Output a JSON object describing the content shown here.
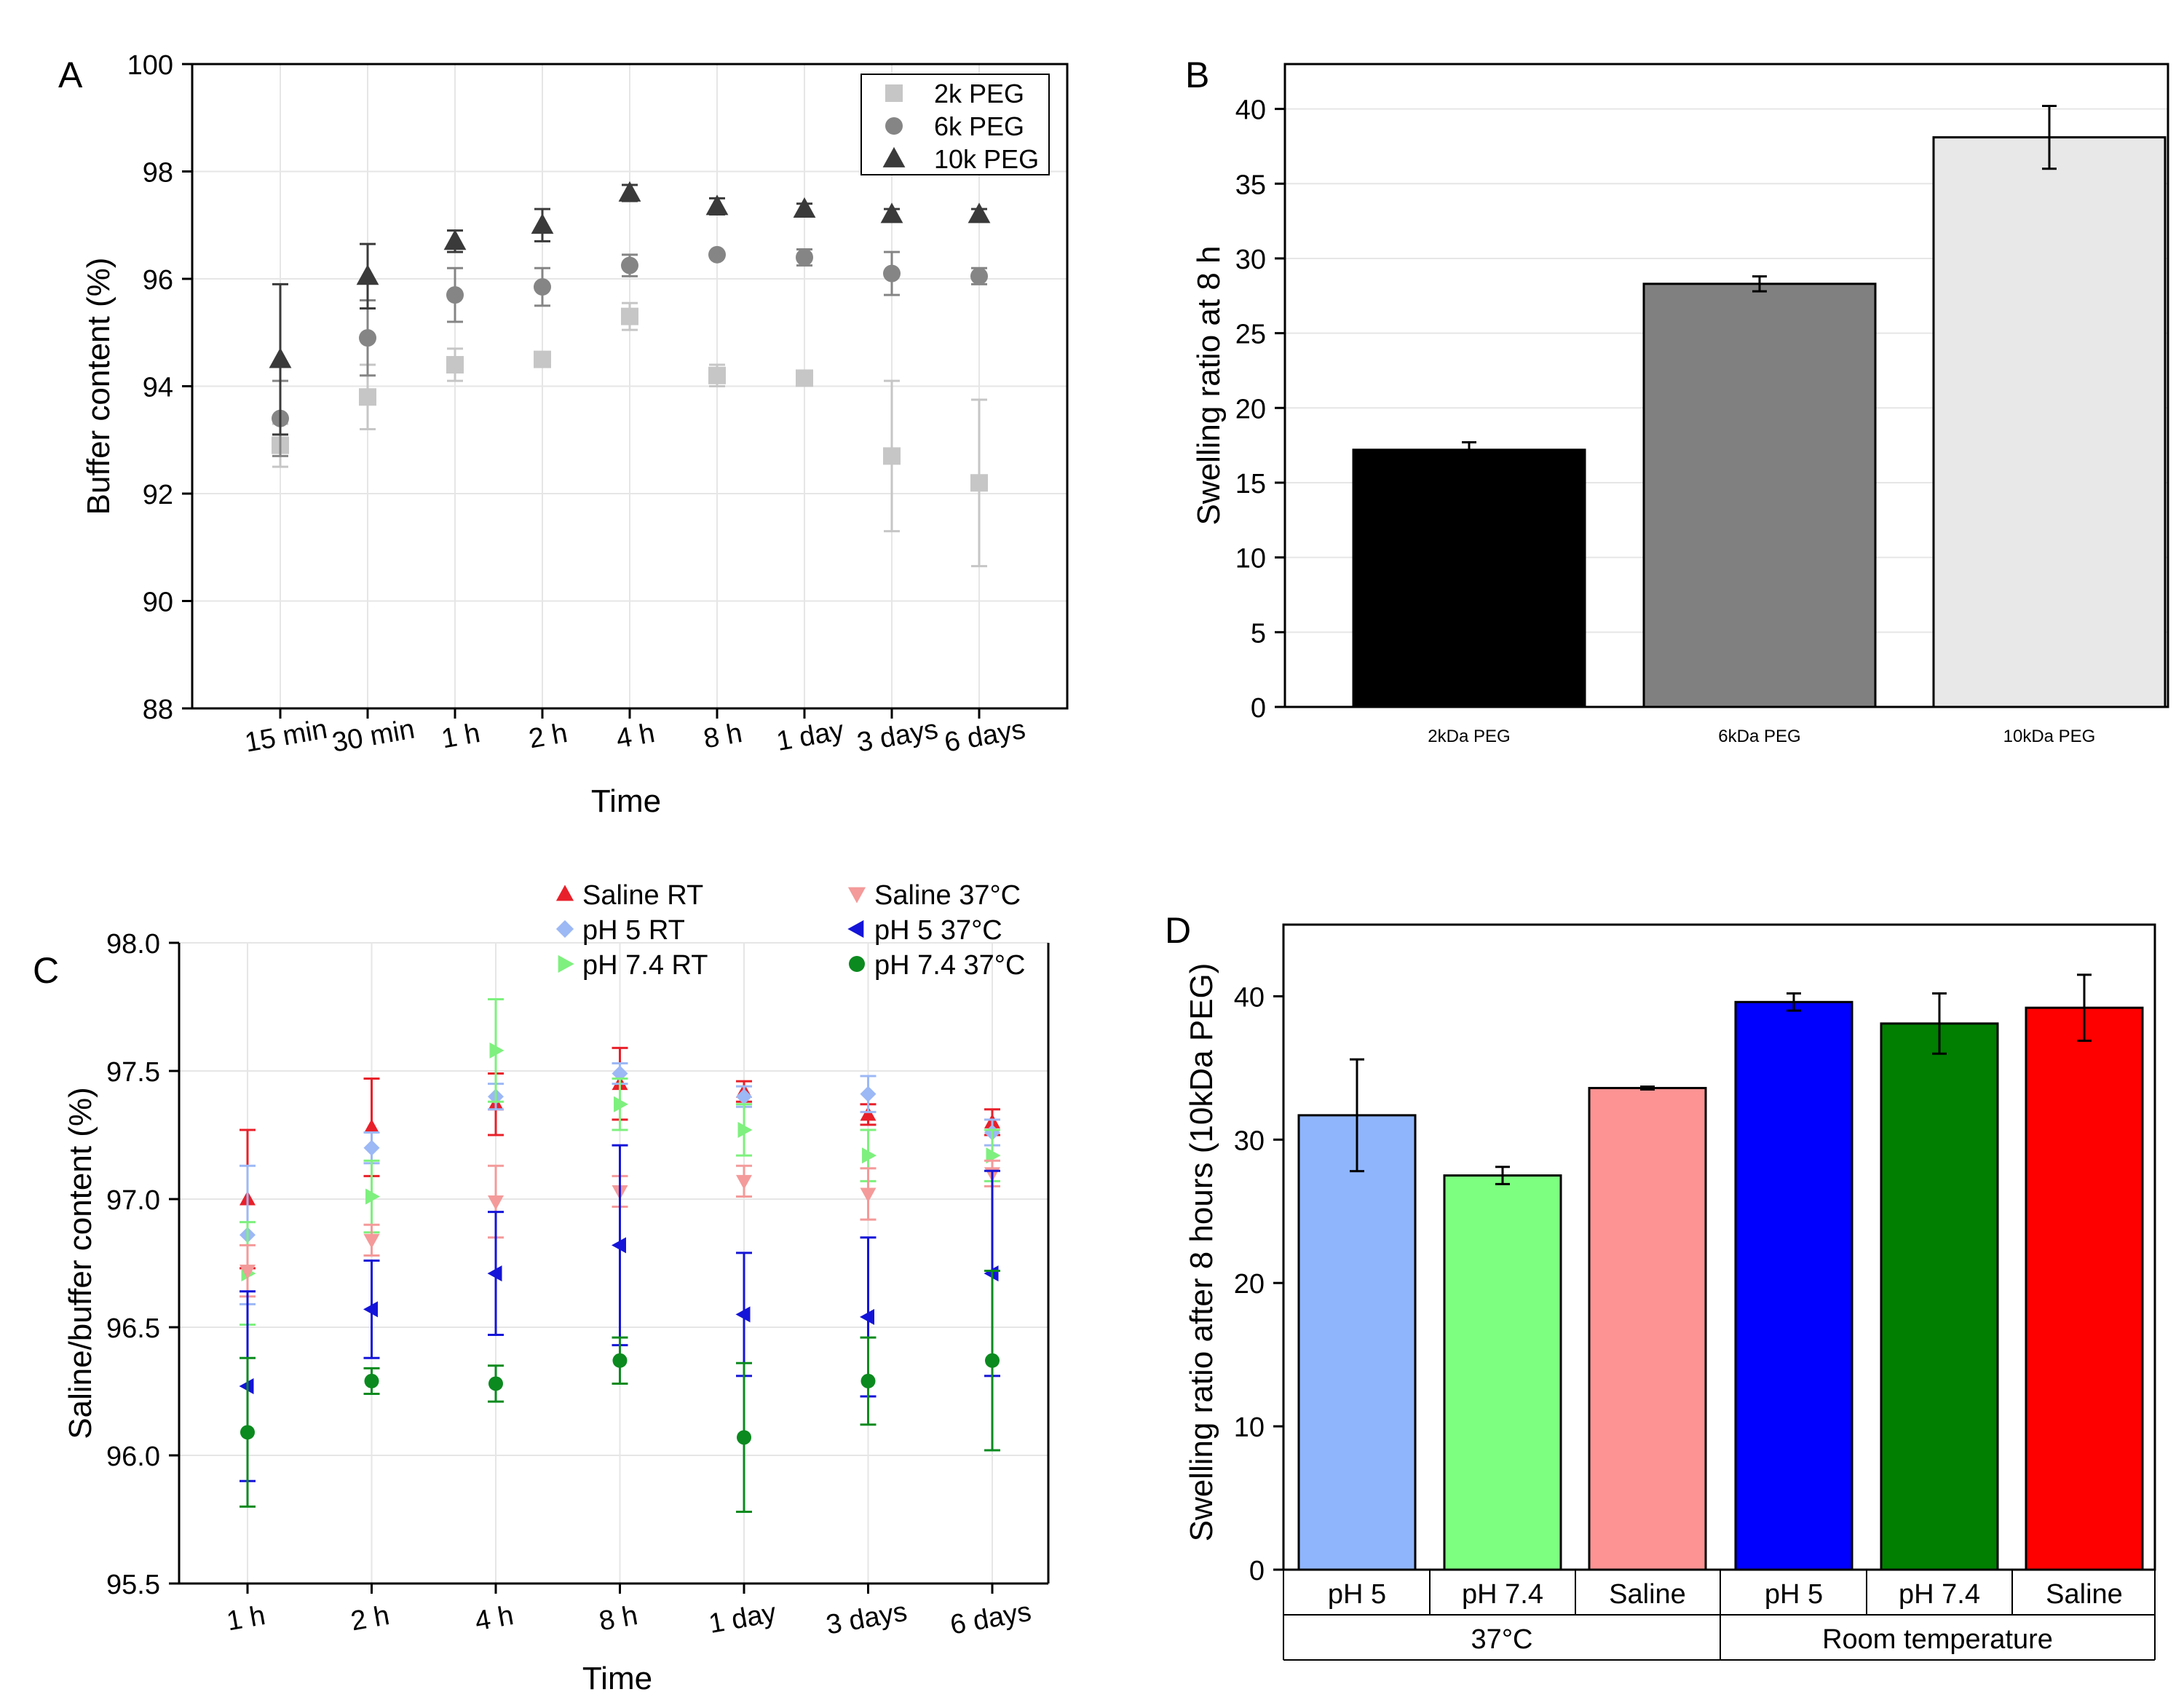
{
  "chart_data": [
    {
      "panel": "A",
      "type": "scatter",
      "xlabel": "Time",
      "ylabel": "Buffer content (%)",
      "ylim": [
        88,
        100
      ],
      "yticks": [
        88,
        90,
        92,
        94,
        96,
        98,
        100
      ],
      "categories": [
        "15 min",
        "30 min",
        "1 h",
        "2 h",
        "4 h",
        "8 h",
        "1 day",
        "3 days",
        "6 days"
      ],
      "legend_position": "top-right",
      "series": [
        {
          "name": "2k PEG",
          "marker": "square",
          "color": "#c6c6c6",
          "values": [
            92.9,
            93.8,
            94.4,
            94.5,
            95.3,
            94.2,
            94.15,
            92.7,
            92.2
          ],
          "errors": [
            0.4,
            0.6,
            0.3,
            0.05,
            0.25,
            0.2,
            0.05,
            1.4,
            1.55
          ]
        },
        {
          "name": "6k PEG",
          "marker": "circle",
          "color": "#858585",
          "values": [
            93.4,
            94.9,
            95.7,
            95.85,
            96.25,
            96.45,
            96.4,
            96.1,
            96.05
          ],
          "errors": [
            0.7,
            0.7,
            0.5,
            0.35,
            0.2,
            0.05,
            0.15,
            0.4,
            0.15
          ]
        },
        {
          "name": "10k PEG",
          "marker": "triangle",
          "color": "#3a3a3a",
          "values": [
            94.5,
            96.05,
            96.7,
            97.0,
            97.6,
            97.35,
            97.3,
            97.2,
            97.2
          ],
          "errors": [
            1.4,
            0.6,
            0.2,
            0.3,
            0.15,
            0.15,
            0.1,
            0.1,
            0.1
          ]
        }
      ]
    },
    {
      "panel": "B",
      "type": "bar",
      "xlabel": "",
      "ylabel": "Swelling ratio at 8 h",
      "ylim": [
        0,
        43
      ],
      "yticks": [
        0,
        5,
        10,
        15,
        20,
        25,
        30,
        35,
        40
      ],
      "categories": [
        "2kDa PEG",
        "6kDa PEG",
        "10kDa PEG"
      ],
      "values": [
        17.2,
        28.3,
        38.1
      ],
      "errors": [
        0.5,
        0.5,
        2.1
      ],
      "colors": [
        "#000000",
        "#808080",
        "#e8e8e8"
      ]
    },
    {
      "panel": "C",
      "type": "scatter",
      "xlabel": "Time",
      "ylabel": "Saline/buffer content (%)",
      "ylim": [
        95.5,
        98.0
      ],
      "yticks": [
        "95.5",
        "96.0",
        "96.5",
        "97.0",
        "97.5",
        "98.0"
      ],
      "categories": [
        "1 h",
        "2 h",
        "4 h",
        "8 h",
        "1 day",
        "3 days",
        "6 days"
      ],
      "legend_position": "top",
      "series": [
        {
          "name": "Saline RT",
          "marker": "triangle-up",
          "color": "#e8202a",
          "values": [
            97.0,
            97.28,
            97.37,
            97.45,
            97.42,
            97.33,
            97.3
          ],
          "errors": [
            0.27,
            0.19,
            0.12,
            0.14,
            0.04,
            0.04,
            0.05
          ]
        },
        {
          "name": "pH 5 RT",
          "marker": "diamond",
          "color": "#9cb8f5",
          "values": [
            96.86,
            97.2,
            97.4,
            97.49,
            97.4,
            97.41,
            97.26
          ],
          "errors": [
            0.27,
            0.06,
            0.05,
            0.04,
            0.04,
            0.07,
            0.05
          ]
        },
        {
          "name": "pH 7.4 RT",
          "marker": "triangle-right",
          "color": "#7ef07e",
          "values": [
            96.71,
            97.01,
            97.58,
            97.37,
            97.27,
            97.17,
            97.17
          ],
          "errors": [
            0.2,
            0.14,
            0.2,
            0.1,
            0.1,
            0.1,
            0.1
          ]
        },
        {
          "name": "Saline 37°C",
          "marker": "triangle-down",
          "color": "#f49a9a",
          "values": [
            96.72,
            96.84,
            96.99,
            97.03,
            97.07,
            97.02,
            97.1
          ],
          "errors": [
            0.1,
            0.06,
            0.14,
            0.06,
            0.06,
            0.1,
            0.05
          ]
        },
        {
          "name": "pH 5 37°C",
          "marker": "triangle-left",
          "color": "#1414d8",
          "values": [
            96.27,
            96.57,
            96.71,
            96.82,
            96.55,
            96.54,
            96.71
          ],
          "errors": [
            0.37,
            0.19,
            0.24,
            0.39,
            0.24,
            0.31,
            0.4
          ]
        },
        {
          "name": "pH 7.4 37°C",
          "marker": "circle",
          "color": "#0b8a1f",
          "values": [
            96.09,
            96.29,
            96.28,
            96.37,
            96.07,
            96.29,
            96.37
          ],
          "errors": [
            0.29,
            0.05,
            0.07,
            0.09,
            0.29,
            0.17,
            0.35
          ]
        }
      ]
    },
    {
      "panel": "D",
      "type": "bar",
      "xlabel": "",
      "ylabel": "Swelling ratio after 8 hours (10kDa PEG)",
      "ylim": [
        0,
        45
      ],
      "yticks": [
        0,
        10,
        20,
        30,
        40
      ],
      "categories": [
        "pH 5",
        "pH 7.4",
        "Saline",
        "pH 5",
        "pH 7.4",
        "Saline"
      ],
      "groups": [
        {
          "label": "37°C",
          "span": 3
        },
        {
          "label": "Room temperature",
          "span": 3
        }
      ],
      "values": [
        31.7,
        27.5,
        33.6,
        39.6,
        38.1,
        39.2
      ],
      "errors": [
        3.9,
        0.6,
        0.1,
        0.6,
        2.1,
        2.3
      ],
      "colors": [
        "#8fb5fd",
        "#7dff80",
        "#fd9393",
        "#0000ff",
        "#007f00",
        "#ff0000"
      ]
    }
  ],
  "panels": [
    {
      "letter": "A"
    },
    {
      "letter": "B"
    },
    {
      "letter": "C"
    },
    {
      "letter": "D"
    }
  ]
}
